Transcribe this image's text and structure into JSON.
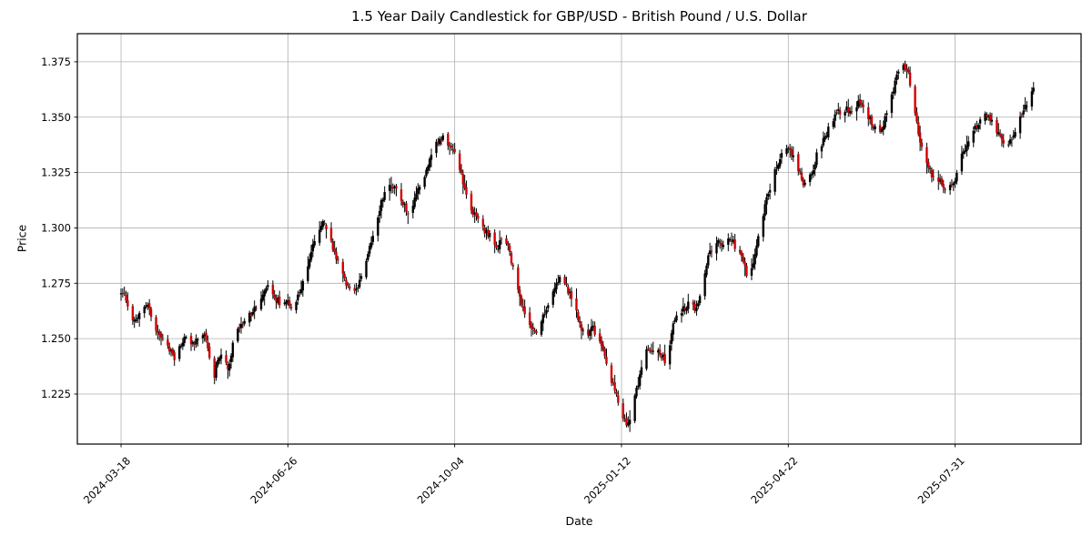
{
  "chart_data": {
    "type": "candlestick",
    "title": "1.5 Year Daily Candlestick for GBP/USD - British Pound / U.S. Dollar",
    "xlabel": "Date",
    "ylabel": "Price",
    "grid": true,
    "legend": "none",
    "y_ticks": [
      1.225,
      1.25,
      1.275,
      1.3,
      1.325,
      1.35,
      1.375
    ],
    "y_tick_labels": [
      "1.225",
      "1.250",
      "1.275",
      "1.300",
      "1.325",
      "1.350",
      "1.375"
    ],
    "ylim": [
      1.2024,
      1.3877
    ],
    "x_tick_labels": [
      "2024-03-18",
      "2024-06-26",
      "2024-10-04",
      "2025-01-12",
      "2025-04-22",
      "2025-07-31"
    ],
    "x_tick_day_offsets": [
      0,
      100,
      200,
      300,
      400,
      500
    ],
    "x_start_date": "2024-03-18",
    "x_end_date": "2025-09-16",
    "x_axis_day_range": [
      -26.2,
      575.5
    ],
    "frequency": "daily, weekdays only",
    "extremes": {
      "max_high": {
        "price": 1.379,
        "date_approx": "2025-07-01"
      },
      "min_low": {
        "price": 1.209,
        "date_approx": "2025-01-13"
      }
    },
    "colors": {
      "up_body": "#000000",
      "down_body": "#d40000",
      "wick": "#000000",
      "grid": "#b0b0b0",
      "axis": "#000000",
      "text": "#000000",
      "background": "#ffffff"
    },
    "price_path_anchors_day_price": [
      [
        0,
        1.27
      ],
      [
        2,
        1.272
      ],
      [
        4,
        1.266
      ],
      [
        6,
        1.261
      ],
      [
        9,
        1.257
      ],
      [
        12,
        1.262
      ],
      [
        16,
        1.266
      ],
      [
        20,
        1.257
      ],
      [
        25,
        1.249
      ],
      [
        29,
        1.246
      ],
      [
        33,
        1.241
      ],
      [
        37,
        1.248
      ],
      [
        40,
        1.251
      ],
      [
        44,
        1.247
      ],
      [
        48,
        1.253
      ],
      [
        52,
        1.249
      ],
      [
        56,
        1.232
      ],
      [
        58,
        1.238
      ],
      [
        61,
        1.244
      ],
      [
        65,
        1.235
      ],
      [
        68,
        1.25
      ],
      [
        72,
        1.256
      ],
      [
        76,
        1.259
      ],
      [
        80,
        1.263
      ],
      [
        85,
        1.27
      ],
      [
        88,
        1.274
      ],
      [
        92,
        1.269
      ],
      [
        97,
        1.265
      ],
      [
        100,
        1.268
      ],
      [
        103,
        1.264
      ],
      [
        107,
        1.27
      ],
      [
        112,
        1.282
      ],
      [
        116,
        1.294
      ],
      [
        121,
        1.302
      ],
      [
        124,
        1.3
      ],
      [
        128,
        1.29
      ],
      [
        133,
        1.281
      ],
      [
        137,
        1.272
      ],
      [
        140,
        1.27
      ],
      [
        145,
        1.279
      ],
      [
        149,
        1.289
      ],
      [
        153,
        1.301
      ],
      [
        157,
        1.313
      ],
      [
        161,
        1.321
      ],
      [
        165,
        1.317
      ],
      [
        170,
        1.311
      ],
      [
        173,
        1.305
      ],
      [
        177,
        1.314
      ],
      [
        182,
        1.323
      ],
      [
        186,
        1.331
      ],
      [
        190,
        1.339
      ],
      [
        194,
        1.341
      ],
      [
        198,
        1.336
      ],
      [
        202,
        1.331
      ],
      [
        206,
        1.319
      ],
      [
        210,
        1.309
      ],
      [
        214,
        1.304
      ],
      [
        218,
        1.299
      ],
      [
        223,
        1.295
      ],
      [
        226,
        1.291
      ],
      [
        230,
        1.297
      ],
      [
        234,
        1.287
      ],
      [
        238,
        1.272
      ],
      [
        243,
        1.261
      ],
      [
        247,
        1.254
      ],
      [
        250,
        1.253
      ],
      [
        255,
        1.263
      ],
      [
        259,
        1.271
      ],
      [
        263,
        1.277
      ],
      [
        267,
        1.274
      ],
      [
        271,
        1.267
      ],
      [
        276,
        1.256
      ],
      [
        279,
        1.251
      ],
      [
        283,
        1.256
      ],
      [
        286,
        1.25
      ],
      [
        290,
        1.243
      ],
      [
        293,
        1.235
      ],
      [
        297,
        1.225
      ],
      [
        300,
        1.216
      ],
      [
        303,
        1.212
      ],
      [
        306,
        1.214
      ],
      [
        308,
        1.222
      ],
      [
        311,
        1.231
      ],
      [
        315,
        1.247
      ],
      [
        318,
        1.242
      ],
      [
        321,
        1.246
      ],
      [
        325,
        1.242
      ],
      [
        328,
        1.238
      ],
      [
        332,
        1.259
      ],
      [
        337,
        1.263
      ],
      [
        341,
        1.266
      ],
      [
        345,
        1.263
      ],
      [
        349,
        1.273
      ],
      [
        353,
        1.288
      ],
      [
        357,
        1.293
      ],
      [
        361,
        1.293
      ],
      [
        366,
        1.296
      ],
      [
        369,
        1.291
      ],
      [
        373,
        1.287
      ],
      [
        376,
        1.276
      ],
      [
        379,
        1.283
      ],
      [
        382,
        1.295
      ],
      [
        386,
        1.308
      ],
      [
        390,
        1.32
      ],
      [
        394,
        1.329
      ],
      [
        398,
        1.336
      ],
      [
        402,
        1.334
      ],
      [
        406,
        1.327
      ],
      [
        410,
        1.319
      ],
      [
        415,
        1.326
      ],
      [
        418,
        1.334
      ],
      [
        423,
        1.342
      ],
      [
        427,
        1.349
      ],
      [
        430,
        1.352
      ],
      [
        435,
        1.354
      ],
      [
        439,
        1.351
      ],
      [
        443,
        1.357
      ],
      [
        447,
        1.352
      ],
      [
        451,
        1.347
      ],
      [
        456,
        1.342
      ],
      [
        459,
        1.352
      ],
      [
        463,
        1.361
      ],
      [
        466,
        1.37
      ],
      [
        469,
        1.374
      ],
      [
        472,
        1.371
      ],
      [
        476,
        1.355
      ],
      [
        478,
        1.344
      ],
      [
        483,
        1.33
      ],
      [
        487,
        1.323
      ],
      [
        491,
        1.321
      ],
      [
        495,
        1.317
      ],
      [
        500,
        1.321
      ],
      [
        503,
        1.33
      ],
      [
        507,
        1.337
      ],
      [
        511,
        1.343
      ],
      [
        516,
        1.349
      ],
      [
        519,
        1.352
      ],
      [
        523,
        1.347
      ],
      [
        528,
        1.341
      ],
      [
        532,
        1.337
      ],
      [
        536,
        1.343
      ],
      [
        539,
        1.349
      ],
      [
        543,
        1.355
      ],
      [
        547,
        1.362
      ]
    ],
    "synthesis": {
      "seed": 11,
      "open_gap_jitter": 0.0016,
      "close_jitter": 0.003,
      "wick_extra": 0.0042,
      "min_wick": 0.0008
    }
  }
}
